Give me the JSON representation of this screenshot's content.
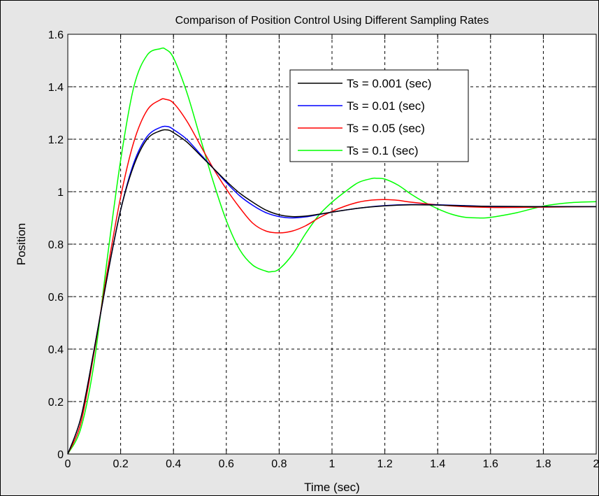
{
  "chart_data": {
    "type": "line",
    "title": "Comparison of Position Control Using Different Sampling Rates",
    "xlabel": "Time (sec)",
    "ylabel": "Position",
    "xlim": [
      0,
      2
    ],
    "ylim": [
      0,
      1.6
    ],
    "xticks": [
      0,
      0.2,
      0.4,
      0.6,
      0.8,
      1,
      1.2,
      1.4,
      1.6,
      1.8,
      2
    ],
    "xtick_labels": [
      "0",
      "0.2",
      "0.4",
      "0.6",
      "0.8",
      "1",
      "1.2",
      "1.4",
      "1.6",
      "1.8",
      "2"
    ],
    "yticks": [
      0,
      0.2,
      0.4,
      0.6,
      0.8,
      1,
      1.2,
      1.4,
      1.6
    ],
    "ytick_labels": [
      "0",
      "0.2",
      "0.4",
      "0.6",
      "0.8",
      "1",
      "1.2",
      "1.4",
      "1.6"
    ],
    "grid": true,
    "legend_position": "top-right",
    "series": [
      {
        "name": "Ts = 0.001 (sec)",
        "color": "#000000",
        "x": [
          0,
          0.05,
          0.1,
          0.15,
          0.2,
          0.25,
          0.3,
          0.35,
          0.38,
          0.4,
          0.45,
          0.5,
          0.55,
          0.6,
          0.65,
          0.7,
          0.75,
          0.8,
          0.85,
          0.9,
          0.95,
          1.0,
          1.1,
          1.2,
          1.3,
          1.4,
          1.5,
          1.6,
          1.8,
          2.0
        ],
        "y": [
          0,
          0.14,
          0.4,
          0.68,
          0.93,
          1.1,
          1.2,
          1.232,
          1.235,
          1.225,
          1.19,
          1.14,
          1.09,
          1.04,
          0.995,
          0.96,
          0.93,
          0.912,
          0.905,
          0.907,
          0.914,
          0.922,
          0.937,
          0.946,
          0.95,
          0.949,
          0.946,
          0.944,
          0.943,
          0.943
        ]
      },
      {
        "name": "Ts = 0.01 (sec)",
        "color": "#0000ff",
        "x": [
          0,
          0.05,
          0.1,
          0.15,
          0.2,
          0.25,
          0.3,
          0.35,
          0.38,
          0.4,
          0.45,
          0.5,
          0.55,
          0.6,
          0.65,
          0.7,
          0.75,
          0.8,
          0.85,
          0.9,
          0.95,
          1.0,
          1.1,
          1.2,
          1.3,
          1.4,
          1.5,
          1.6,
          1.8,
          2.0
        ],
        "y": [
          0,
          0.14,
          0.4,
          0.68,
          0.93,
          1.11,
          1.21,
          1.245,
          1.248,
          1.237,
          1.2,
          1.145,
          1.09,
          1.035,
          0.985,
          0.948,
          0.92,
          0.905,
          0.9,
          0.904,
          0.913,
          0.922,
          0.937,
          0.947,
          0.951,
          0.95,
          0.947,
          0.944,
          0.943,
          0.943
        ]
      },
      {
        "name": "Ts = 0.05 (sec)",
        "color": "#ff0000",
        "x": [
          0,
          0.05,
          0.1,
          0.15,
          0.2,
          0.25,
          0.3,
          0.35,
          0.37,
          0.4,
          0.45,
          0.5,
          0.55,
          0.6,
          0.65,
          0.7,
          0.75,
          0.8,
          0.85,
          0.9,
          0.95,
          1.0,
          1.05,
          1.1,
          1.15,
          1.2,
          1.25,
          1.3,
          1.4,
          1.5,
          1.6,
          1.7,
          1.8,
          2.0
        ],
        "y": [
          0,
          0.12,
          0.39,
          0.7,
          0.98,
          1.19,
          1.31,
          1.35,
          1.352,
          1.338,
          1.27,
          1.18,
          1.09,
          1.01,
          0.94,
          0.88,
          0.85,
          0.843,
          0.85,
          0.87,
          0.9,
          0.925,
          0.945,
          0.96,
          0.968,
          0.97,
          0.967,
          0.96,
          0.95,
          0.943,
          0.94,
          0.94,
          0.941,
          0.943
        ]
      },
      {
        "name": "Ts = 0.1 (sec)",
        "color": "#00ff00",
        "x": [
          0,
          0.05,
          0.1,
          0.15,
          0.2,
          0.25,
          0.3,
          0.35,
          0.37,
          0.4,
          0.45,
          0.5,
          0.55,
          0.6,
          0.65,
          0.7,
          0.75,
          0.77,
          0.8,
          0.85,
          0.9,
          0.95,
          1.0,
          1.05,
          1.1,
          1.15,
          1.17,
          1.2,
          1.25,
          1.3,
          1.35,
          1.4,
          1.45,
          1.5,
          1.55,
          1.58,
          1.62,
          1.7,
          1.8,
          1.9,
          2.0
        ],
        "y": [
          0,
          0.1,
          0.35,
          0.75,
          1.12,
          1.4,
          1.52,
          1.545,
          1.543,
          1.51,
          1.38,
          1.21,
          1.04,
          0.89,
          0.78,
          0.72,
          0.697,
          0.695,
          0.705,
          0.76,
          0.84,
          0.91,
          0.96,
          1.0,
          1.035,
          1.05,
          1.051,
          1.048,
          1.025,
          0.99,
          0.96,
          0.935,
          0.915,
          0.903,
          0.9,
          0.9,
          0.905,
          0.92,
          0.945,
          0.958,
          0.962
        ]
      }
    ]
  }
}
